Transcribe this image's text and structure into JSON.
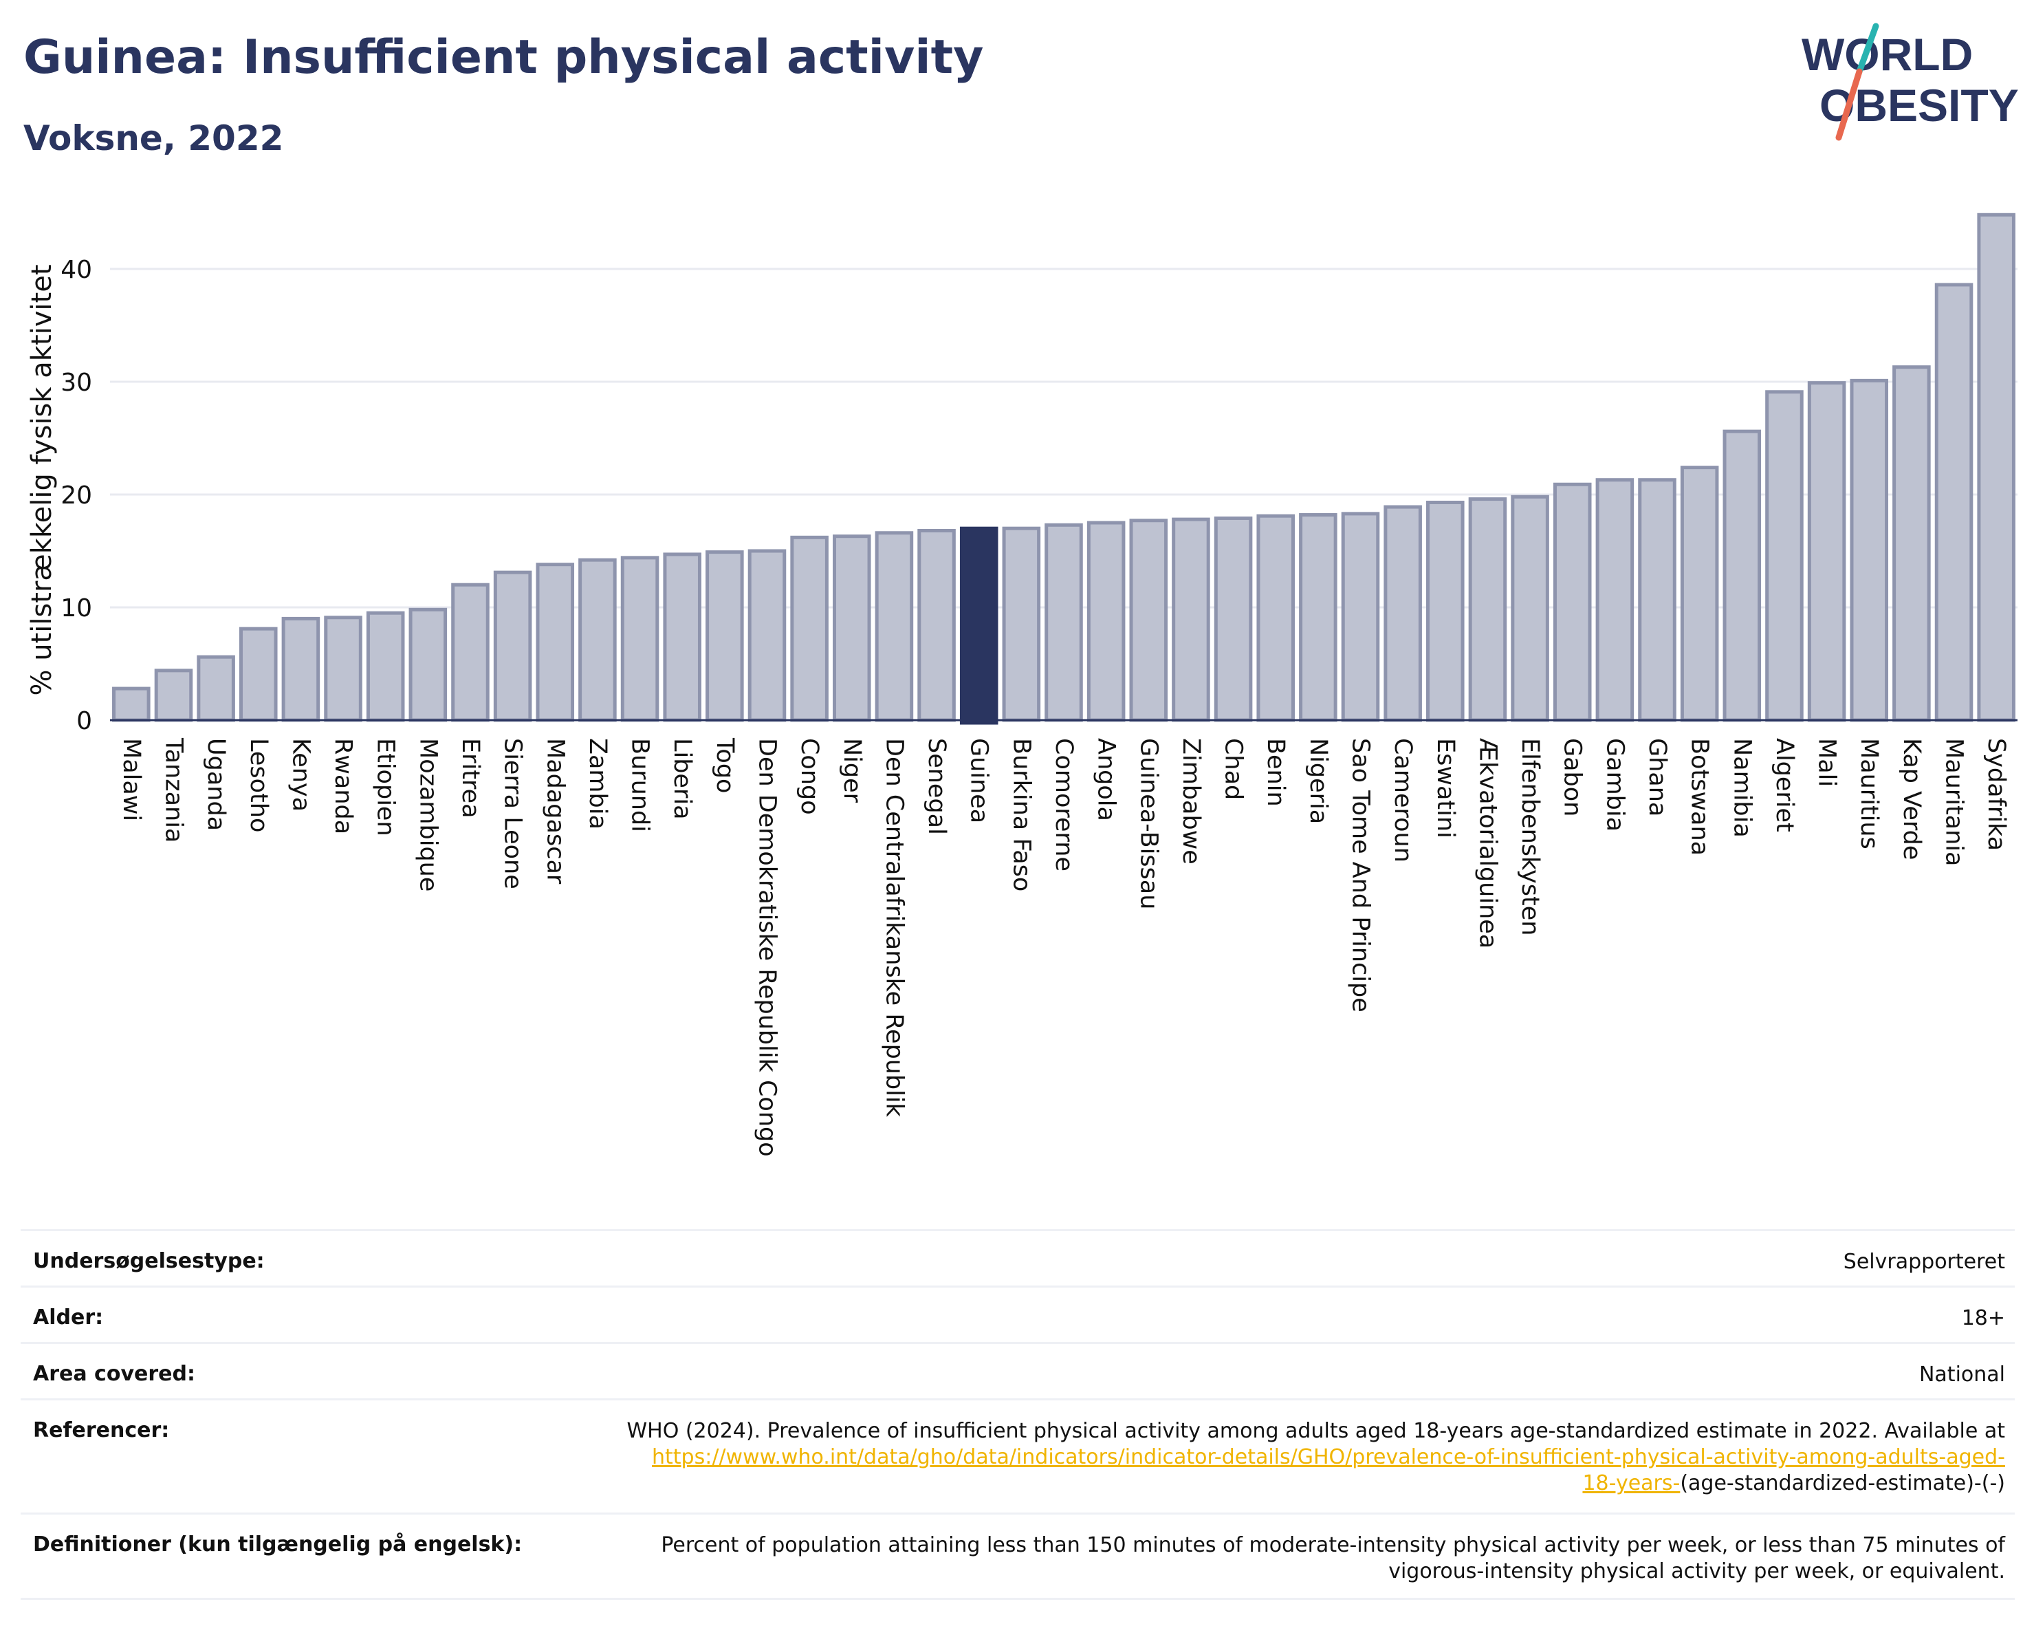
{
  "header": {
    "title": "Guinea: Insufficient physical activity",
    "subtitle": "Voksne, 2022",
    "logo_line1": "WORLD",
    "logo_line2": "OBESITY"
  },
  "colors": {
    "bar": "#bec2d1",
    "bar_stroke": "#8e94ad",
    "highlight": "#2a3560",
    "text": "#2a3560",
    "grid": "#e8eaf0",
    "link": "#f0b400",
    "logo_teal": "#28b3b0",
    "logo_coral": "#e8684f"
  },
  "chart_data": {
    "type": "bar",
    "ylabel": "% utilstrækkelig fysisk aktivitet",
    "ylim": [
      0,
      45
    ],
    "yticks": [
      0,
      10,
      20,
      30,
      40
    ],
    "grid": true,
    "highlight": "Guinea",
    "categories": [
      "Malawi",
      "Tanzania",
      "Uganda",
      "Lesotho",
      "Kenya",
      "Rwanda",
      "Etiopien",
      "Mozambique",
      "Eritrea",
      "Sierra Leone",
      "Madagascar",
      "Zambia",
      "Burundi",
      "Liberia",
      "Togo",
      "Den Demokratiske Republik Congo",
      "Congo",
      "Niger",
      "Den Centralafrikanske Republik",
      "Senegal",
      "Guinea",
      "Burkina Faso",
      "Comorerne",
      "Angola",
      "Guinea-Bissau",
      "Zimbabwe",
      "Chad",
      "Benin",
      "Nigeria",
      "Sao Tome And Principe",
      "Cameroun",
      "Eswatini",
      "Ækvatorialguinea",
      "Elfenbenskysten",
      "Gabon",
      "Gambia",
      "Ghana",
      "Botswana",
      "Namibia",
      "Algeriet",
      "Mali",
      "Mauritius",
      "Kap Verde",
      "Mauritania",
      "Sydafrika"
    ],
    "values": [
      2.8,
      4.4,
      5.6,
      8.1,
      9.0,
      9.1,
      9.5,
      9.8,
      12.0,
      13.1,
      13.8,
      14.2,
      14.4,
      14.7,
      14.9,
      15.0,
      16.2,
      16.3,
      16.6,
      16.8,
      17.0,
      17.0,
      17.3,
      17.5,
      17.7,
      17.8,
      17.9,
      18.1,
      18.2,
      18.3,
      18.9,
      19.3,
      19.6,
      19.8,
      20.9,
      21.3,
      21.3,
      22.4,
      25.6,
      29.1,
      29.9,
      30.1,
      31.3,
      38.6,
      44.8
    ]
  },
  "info": {
    "rows": [
      {
        "key": "Undersøgelsestype:",
        "value": "Selvrapporteret"
      },
      {
        "key": "Alder:",
        "value": "18+"
      },
      {
        "key": "Area covered:",
        "value": "National"
      },
      {
        "key": "Referencer:",
        "value": "WHO (2024). Prevalence of insufficient physical activity among adults aged 18-years age-standardized estimate in 2022. Available at",
        "link_line1": "https://www.who.int/data/gho/data/indicators/indicator-details/GHO/prevalence-of-insufficient-physical-activity-among-adults-aged-",
        "link_line2": "18-years-",
        "after_link": "(age-standardized-estimate)-(-)"
      },
      {
        "key": "Definitioner (kun tilgængelig på engelsk):",
        "value_line1": "Percent of population attaining less than 150 minutes of moderate-intensity physical activity per week, or less than 75 minutes of",
        "value_line2": "vigorous-intensity physical activity per week, or equivalent."
      }
    ]
  }
}
